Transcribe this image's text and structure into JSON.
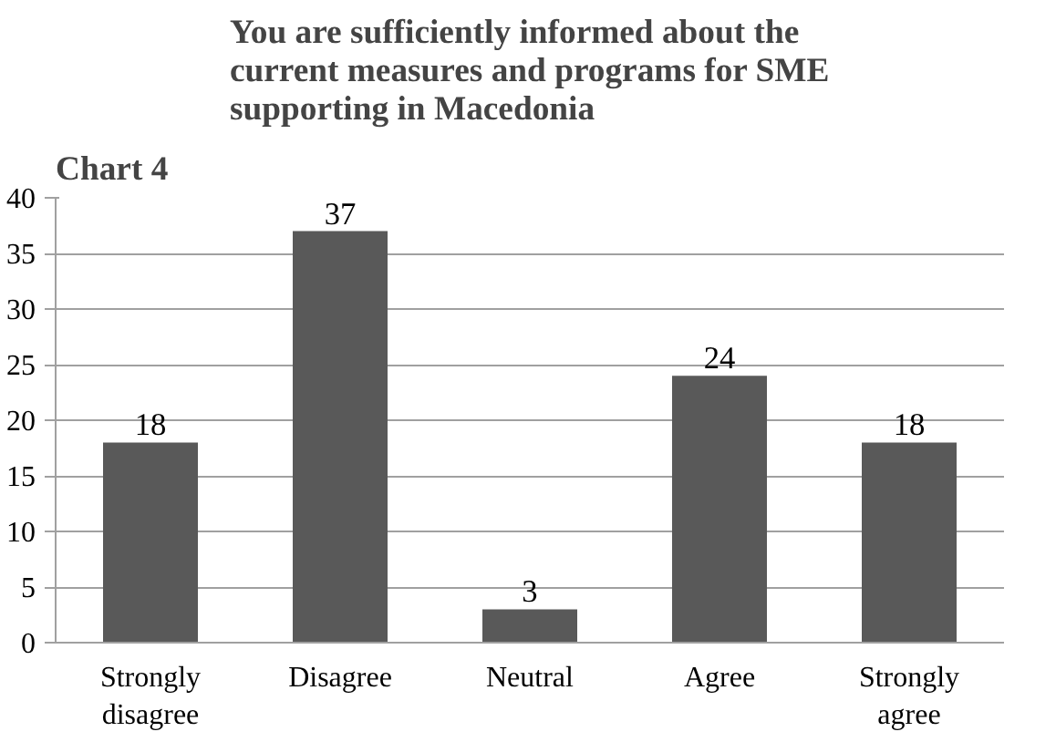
{
  "chart_data": {
    "type": "bar",
    "title": "You are sufficiently informed about the current measures and programs for SME supporting in Macedonia",
    "annotations": [
      "Chart 4"
    ],
    "categories": [
      "Strongly disagree",
      "Disagree",
      "Neutral",
      "Agree",
      "Strongly agree"
    ],
    "values": [
      18,
      37,
      3,
      24,
      18
    ],
    "color": "#595959",
    "ylim": [
      0,
      40
    ],
    "yticks": [
      0,
      5,
      10,
      15,
      20,
      25,
      30,
      35,
      40
    ],
    "grid": "y",
    "data_labels": true
  }
}
